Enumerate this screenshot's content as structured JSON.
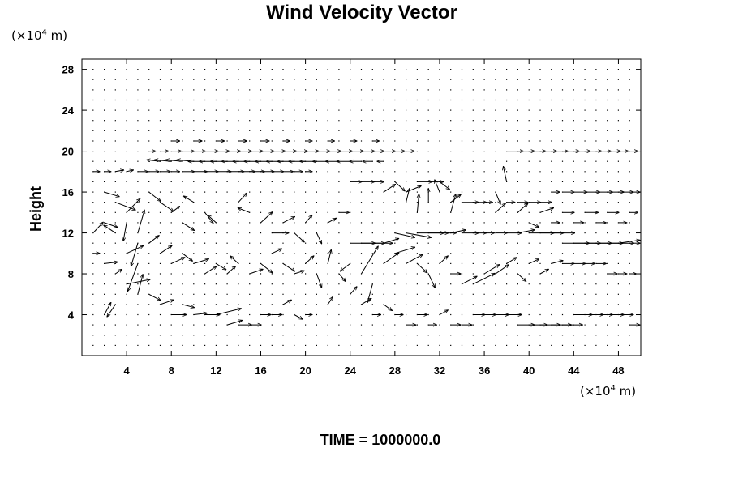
{
  "chart_data": {
    "type": "quiver",
    "title": "Wind Velocity Vector",
    "ylabel": "Height",
    "xlabel": "",
    "x_unit_base": "(×10",
    "x_unit_exp": "4",
    "x_unit_tail": " m)",
    "y_unit_base": "(×10",
    "y_unit_exp": "4",
    "y_unit_tail": " m)",
    "xlim": [
      0,
      50
    ],
    "ylim": [
      0,
      29
    ],
    "x_ticks": [
      "4",
      "8",
      "12",
      "16",
      "20",
      "24",
      "28",
      "32",
      "36",
      "40",
      "44",
      "48"
    ],
    "y_ticks": [
      "4",
      "8",
      "12",
      "16",
      "20",
      "24",
      "28"
    ],
    "grid_spacing": 1,
    "time_label": "TIME = 1000000.0",
    "vectors": [
      [
        1,
        18,
        0.4,
        0.0
      ],
      [
        2,
        18,
        0.4,
        0.0
      ],
      [
        3,
        18,
        0.5,
        0.1
      ],
      [
        4,
        18,
        0.4,
        0.1
      ],
      [
        5,
        18,
        0.6,
        0.0
      ],
      [
        6,
        18,
        0.6,
        0.0
      ],
      [
        7,
        18,
        0.6,
        0.0
      ],
      [
        8,
        18,
        0.5,
        0.0
      ],
      [
        9,
        18,
        0.7,
        0.0
      ],
      [
        10,
        18,
        0.8,
        0.0
      ],
      [
        11,
        18,
        0.8,
        0.0
      ],
      [
        12,
        18,
        0.9,
        0.0
      ],
      [
        13,
        18,
        1.0,
        0.0
      ],
      [
        14,
        18,
        1.0,
        0.0
      ],
      [
        15,
        18,
        0.9,
        0.0
      ],
      [
        16,
        18,
        0.8,
        0.0
      ],
      [
        17,
        18,
        0.7,
        0.0
      ],
      [
        18,
        18,
        0.6,
        0.0
      ],
      [
        19,
        18,
        0.5,
        0.0
      ],
      [
        20,
        18,
        0.4,
        0.0
      ],
      [
        7,
        19,
        -0.8,
        0.1
      ],
      [
        8,
        19,
        -1.0,
        0.1
      ],
      [
        9,
        19,
        -1.0,
        0.1
      ],
      [
        10,
        19,
        -1.0,
        0.1
      ],
      [
        11,
        19,
        -1.0,
        0.0
      ],
      [
        12,
        19,
        -1.0,
        0.0
      ],
      [
        13,
        19,
        -1.0,
        0.0
      ],
      [
        14,
        19,
        -1.0,
        0.0
      ],
      [
        15,
        19,
        -1.0,
        0.0
      ],
      [
        16,
        19,
        -1.0,
        0.0
      ],
      [
        17,
        19,
        -1.0,
        0.0
      ],
      [
        18,
        19,
        -1.0,
        0.0
      ],
      [
        19,
        19,
        -1.0,
        0.0
      ],
      [
        20,
        19,
        -1.0,
        0.0
      ],
      [
        21,
        19,
        -1.0,
        0.0
      ],
      [
        22,
        19,
        -0.9,
        0.0
      ],
      [
        23,
        19,
        -0.8,
        0.0
      ],
      [
        24,
        19,
        -0.8,
        0.0
      ],
      [
        25,
        19,
        -0.7,
        0.0
      ],
      [
        26,
        19,
        -0.6,
        0.0
      ],
      [
        27,
        19,
        -0.4,
        0.0
      ],
      [
        6,
        20,
        0.4,
        0.0
      ],
      [
        7,
        20,
        0.5,
        0.0
      ],
      [
        8,
        20,
        0.6,
        0.0
      ],
      [
        9,
        20,
        0.7,
        0.0
      ],
      [
        10,
        20,
        0.7,
        0.0
      ],
      [
        11,
        20,
        0.8,
        0.0
      ],
      [
        12,
        20,
        0.8,
        0.0
      ],
      [
        13,
        20,
        0.8,
        0.0
      ],
      [
        14,
        20,
        0.8,
        0.0
      ],
      [
        15,
        20,
        0.8,
        0.0
      ],
      [
        16,
        20,
        0.8,
        0.0
      ],
      [
        17,
        20,
        0.8,
        0.0
      ],
      [
        18,
        20,
        0.8,
        0.0
      ],
      [
        19,
        20,
        0.8,
        0.0
      ],
      [
        20,
        20,
        0.8,
        0.0
      ],
      [
        21,
        20,
        0.8,
        0.0
      ],
      [
        22,
        20,
        0.8,
        0.0
      ],
      [
        23,
        20,
        0.8,
        0.0
      ],
      [
        24,
        20,
        0.8,
        0.0
      ],
      [
        25,
        20,
        0.8,
        0.0
      ],
      [
        26,
        20,
        0.7,
        0.0
      ],
      [
        27,
        20,
        0.7,
        0.0
      ],
      [
        28,
        20,
        0.6,
        0.0
      ],
      [
        29,
        20,
        0.5,
        0.0
      ],
      [
        38,
        20,
        1.0,
        0.0
      ],
      [
        39,
        20,
        1.0,
        0.0
      ],
      [
        40,
        20,
        1.0,
        0.0
      ],
      [
        41,
        20,
        1.0,
        0.0
      ],
      [
        42,
        20,
        1.0,
        0.0
      ],
      [
        43,
        20,
        1.0,
        0.0
      ],
      [
        44,
        20,
        1.0,
        0.0
      ],
      [
        45,
        20,
        1.0,
        0.0
      ],
      [
        46,
        20,
        0.9,
        0.0
      ],
      [
        47,
        20,
        0.8,
        0.0
      ],
      [
        48,
        20,
        0.6,
        0.0
      ],
      [
        49,
        20,
        0.5,
        0.0
      ],
      [
        8,
        21,
        0.5,
        0.0
      ],
      [
        10,
        21,
        0.5,
        0.0
      ],
      [
        12,
        21,
        0.5,
        0.0
      ],
      [
        14,
        21,
        0.5,
        0.0
      ],
      [
        16,
        21,
        0.5,
        0.0
      ],
      [
        18,
        21,
        0.4,
        0.0
      ],
      [
        20,
        21,
        0.4,
        0.0
      ],
      [
        22,
        21,
        0.4,
        0.0
      ],
      [
        24,
        21,
        0.4,
        0.0
      ],
      [
        26,
        21,
        0.4,
        0.0
      ],
      [
        2,
        16,
        0.9,
        -0.3
      ],
      [
        3,
        15,
        1.2,
        -0.5
      ],
      [
        4,
        14,
        0.8,
        0.9
      ],
      [
        4,
        13,
        -0.2,
        -1.2
      ],
      [
        5,
        12,
        0.4,
        1.5
      ],
      [
        5,
        11,
        -0.4,
        -1.5
      ],
      [
        4,
        10,
        1.0,
        0.5
      ],
      [
        5,
        9,
        -0.6,
        -1.8
      ],
      [
        4,
        7,
        1.4,
        0.3
      ],
      [
        5,
        6,
        0.3,
        1.3
      ],
      [
        3,
        5,
        -0.5,
        -0.8
      ],
      [
        2,
        4,
        0.4,
        0.8
      ],
      [
        1,
        12,
        0.6,
        0.7
      ],
      [
        2,
        13,
        0.8,
        -0.3
      ],
      [
        3,
        12,
        -0.7,
        0.5
      ],
      [
        1,
        10,
        0.4,
        0.0
      ],
      [
        2,
        9,
        0.8,
        0.1
      ],
      [
        3,
        8,
        0.4,
        0.3
      ],
      [
        6,
        16,
        0.7,
        -0.6
      ],
      [
        7,
        15,
        0.8,
        -0.6
      ],
      [
        8,
        14,
        0.5,
        0.4
      ],
      [
        9,
        13,
        0.7,
        -0.5
      ],
      [
        10,
        15,
        -0.6,
        0.4
      ],
      [
        11,
        14,
        0.5,
        -0.7
      ],
      [
        12,
        13,
        -0.5,
        0.5
      ],
      [
        14,
        15,
        0.5,
        0.6
      ],
      [
        15,
        14,
        -0.7,
        0.3
      ],
      [
        16,
        13,
        0.7,
        0.7
      ],
      [
        17,
        12,
        1.0,
        0.0
      ],
      [
        18,
        13,
        0.7,
        0.4
      ],
      [
        19,
        12,
        0.6,
        -0.6
      ],
      [
        20,
        13,
        0.4,
        0.5
      ],
      [
        21,
        12,
        0.3,
        -0.7
      ],
      [
        22,
        13,
        0.5,
        0.3
      ],
      [
        23,
        14,
        0.6,
        0.0
      ],
      [
        6,
        11,
        0.6,
        0.5
      ],
      [
        7,
        10,
        0.7,
        0.5
      ],
      [
        8,
        9,
        0.8,
        0.4
      ],
      [
        9,
        10,
        0.6,
        -0.5
      ],
      [
        10,
        9,
        0.9,
        0.3
      ],
      [
        11,
        8,
        0.7,
        0.5
      ],
      [
        12,
        9,
        0.6,
        -0.4
      ],
      [
        13,
        8,
        0.5,
        0.5
      ],
      [
        14,
        9,
        -0.5,
        0.5
      ],
      [
        15,
        8,
        0.8,
        0.3
      ],
      [
        16,
        9,
        0.7,
        -0.6
      ],
      [
        17,
        10,
        0.6,
        0.3
      ],
      [
        18,
        9,
        0.7,
        -0.5
      ],
      [
        19,
        8,
        0.6,
        0.2
      ],
      [
        20,
        9,
        0.5,
        0.5
      ],
      [
        21,
        8,
        0.3,
        -0.9
      ],
      [
        22,
        9,
        0.2,
        0.9
      ],
      [
        23,
        8,
        0.4,
        -0.5
      ],
      [
        6,
        6,
        0.7,
        -0.4
      ],
      [
        7,
        5,
        0.8,
        0.3
      ],
      [
        8,
        4,
        0.9,
        0.0
      ],
      [
        9,
        5,
        0.7,
        -0.2
      ],
      [
        10,
        4,
        0.8,
        0.1
      ],
      [
        11,
        4,
        0.9,
        0.0
      ],
      [
        12,
        4,
        1.5,
        0.4
      ],
      [
        13,
        3,
        0.9,
        0.3
      ],
      [
        14,
        3,
        0.8,
        0.0
      ],
      [
        15,
        3,
        0.7,
        0.0
      ],
      [
        16,
        4,
        0.6,
        0.0
      ],
      [
        17,
        4,
        0.6,
        0.0
      ],
      [
        18,
        5,
        0.5,
        0.3
      ],
      [
        19,
        4,
        0.5,
        -0.3
      ],
      [
        20,
        4,
        0.4,
        0.0
      ],
      [
        22,
        5,
        0.3,
        0.5
      ],
      [
        24,
        17,
        0.7,
        0.0
      ],
      [
        25,
        17,
        0.8,
        0.0
      ],
      [
        26,
        17,
        0.7,
        0.0
      ],
      [
        27,
        16,
        0.7,
        0.5
      ],
      [
        28,
        17,
        0.6,
        -0.6
      ],
      [
        29,
        16,
        0.9,
        0.4
      ],
      [
        30,
        17,
        0.9,
        0.0
      ],
      [
        31,
        17,
        0.9,
        0.0
      ],
      [
        32,
        17,
        0.6,
        -0.5
      ],
      [
        33,
        15,
        0.6,
        0.5
      ],
      [
        34,
        15,
        1.0,
        0.0
      ],
      [
        35,
        15,
        0.8,
        0.0
      ],
      [
        36,
        15,
        0.5,
        0.0
      ],
      [
        37,
        14,
        0.6,
        0.6
      ],
      [
        38,
        15,
        0.5,
        0.0
      ],
      [
        39,
        15,
        0.6,
        0.0
      ],
      [
        40,
        15,
        0.7,
        0.0
      ],
      [
        41,
        15,
        0.7,
        0.0
      ],
      [
        42,
        16,
        0.5,
        0.0
      ],
      [
        43,
        16,
        0.7,
        0.0
      ],
      [
        44,
        16,
        0.8,
        0.0
      ],
      [
        45,
        16,
        0.9,
        0.0
      ],
      [
        46,
        16,
        1.0,
        0.0
      ],
      [
        47,
        16,
        1.0,
        0.0
      ],
      [
        48,
        16,
        0.9,
        0.0
      ],
      [
        49,
        16,
        0.8,
        0.0
      ],
      [
        24,
        11,
        1.5,
        0.0
      ],
      [
        25,
        11,
        1.4,
        0.0
      ],
      [
        26,
        11,
        1.2,
        0.0
      ],
      [
        27,
        11,
        0.9,
        0.3
      ],
      [
        28,
        12,
        1.2,
        -0.3
      ],
      [
        29,
        12,
        1.5,
        -0.3
      ],
      [
        30,
        12,
        1.6,
        0.0
      ],
      [
        31,
        12,
        1.2,
        0.0
      ],
      [
        32,
        12,
        1.0,
        0.0
      ],
      [
        33,
        12,
        0.9,
        0.2
      ],
      [
        34,
        12,
        1.0,
        0.0
      ],
      [
        35,
        12,
        0.8,
        0.0
      ],
      [
        36,
        12,
        0.6,
        0.0
      ],
      [
        37,
        12,
        0.7,
        0.0
      ],
      [
        38,
        12,
        0.9,
        0.0
      ],
      [
        39,
        12,
        1.0,
        0.2
      ],
      [
        40,
        12,
        1.5,
        0.0
      ],
      [
        41,
        12,
        1.4,
        0.0
      ],
      [
        42,
        12,
        1.4,
        0.0
      ],
      [
        43,
        11,
        1.6,
        0.0
      ],
      [
        44,
        11,
        1.6,
        0.0
      ],
      [
        45,
        11,
        1.6,
        0.0
      ],
      [
        46,
        11,
        1.6,
        0.0
      ],
      [
        47,
        11,
        1.6,
        0.0
      ],
      [
        48,
        11,
        1.5,
        0.2
      ],
      [
        49,
        11,
        1.0,
        0.0
      ],
      [
        24,
        9,
        -0.6,
        -0.5
      ],
      [
        25,
        8,
        1.0,
        1.8
      ],
      [
        26,
        7,
        -0.3,
        -1.2
      ],
      [
        27,
        9,
        0.9,
        0.7
      ],
      [
        28,
        10,
        1.2,
        0.4
      ],
      [
        29,
        9,
        1.0,
        0.6
      ],
      [
        30,
        9,
        0.6,
        -0.6
      ],
      [
        31,
        8,
        0.4,
        -0.9
      ],
      [
        32,
        9,
        0.5,
        0.5
      ],
      [
        33,
        8,
        0.6,
        0.0
      ],
      [
        34,
        7,
        0.9,
        0.5
      ],
      [
        35,
        7,
        1.3,
        0.7
      ],
      [
        36,
        8,
        0.9,
        0.6
      ],
      [
        37,
        8,
        0.8,
        0.6
      ],
      [
        38,
        9,
        0.6,
        0.4
      ],
      [
        39,
        8,
        0.5,
        -0.5
      ],
      [
        40,
        9,
        0.6,
        0.3
      ],
      [
        41,
        8,
        0.5,
        0.3
      ],
      [
        42,
        9,
        0.7,
        0.2
      ],
      [
        43,
        9,
        0.7,
        0.0
      ],
      [
        44,
        9,
        0.7,
        0.0
      ],
      [
        45,
        9,
        0.6,
        0.0
      ],
      [
        46,
        9,
        0.6,
        0.0
      ],
      [
        47,
        8,
        0.6,
        0.0
      ],
      [
        48,
        8,
        0.5,
        0.0
      ],
      [
        49,
        8,
        0.4,
        0.0
      ],
      [
        24,
        6,
        0.4,
        0.5
      ],
      [
        25,
        5,
        0.6,
        0.4
      ],
      [
        26,
        4,
        0.5,
        0.0
      ],
      [
        27,
        5,
        0.5,
        -0.4
      ],
      [
        28,
        4,
        0.5,
        0.0
      ],
      [
        29,
        3,
        0.6,
        0.0
      ],
      [
        30,
        4,
        0.6,
        0.0
      ],
      [
        31,
        3,
        0.5,
        0.0
      ],
      [
        32,
        4,
        0.5,
        0.3
      ],
      [
        33,
        3,
        0.6,
        0.0
      ],
      [
        34,
        3,
        0.6,
        0.0
      ],
      [
        35,
        4,
        0.7,
        0.0
      ],
      [
        36,
        4,
        0.7,
        0.0
      ],
      [
        37,
        4,
        0.8,
        0.0
      ],
      [
        38,
        4,
        0.9,
        0.0
      ],
      [
        39,
        3,
        1.0,
        0.0
      ],
      [
        40,
        3,
        1.1,
        0.0
      ],
      [
        41,
        3,
        1.2,
        0.0
      ],
      [
        42,
        3,
        1.2,
        0.0
      ],
      [
        43,
        3,
        1.2,
        0.0
      ],
      [
        44,
        4,
        1.1,
        0.0
      ],
      [
        45,
        4,
        1.1,
        0.0
      ],
      [
        46,
        4,
        1.0,
        0.0
      ],
      [
        47,
        4,
        1.0,
        0.0
      ],
      [
        48,
        4,
        0.9,
        0.0
      ],
      [
        49,
        3,
        0.7,
        0.0
      ],
      [
        30,
        14,
        0.1,
        1.2
      ],
      [
        29,
        15,
        0.2,
        0.9
      ],
      [
        31,
        15,
        0.0,
        0.9
      ],
      [
        32,
        16,
        -0.3,
        0.8
      ],
      [
        33,
        14,
        0.3,
        1.2
      ],
      [
        38,
        17,
        -0.2,
        1.0
      ],
      [
        37,
        16,
        0.3,
        -0.8
      ],
      [
        39,
        14,
        0.6,
        0.6
      ],
      [
        41,
        14,
        0.8,
        0.3
      ],
      [
        43,
        14,
        0.7,
        0.0
      ],
      [
        45,
        14,
        0.8,
        0.0
      ],
      [
        47,
        14,
        0.7,
        0.0
      ],
      [
        49,
        14,
        0.5,
        0.0
      ],
      [
        40,
        13,
        0.6,
        -0.3
      ],
      [
        42,
        13,
        0.5,
        0.0
      ],
      [
        44,
        13,
        0.6,
        0.0
      ],
      [
        46,
        13,
        0.6,
        0.0
      ],
      [
        48,
        13,
        0.5,
        0.0
      ]
    ]
  }
}
